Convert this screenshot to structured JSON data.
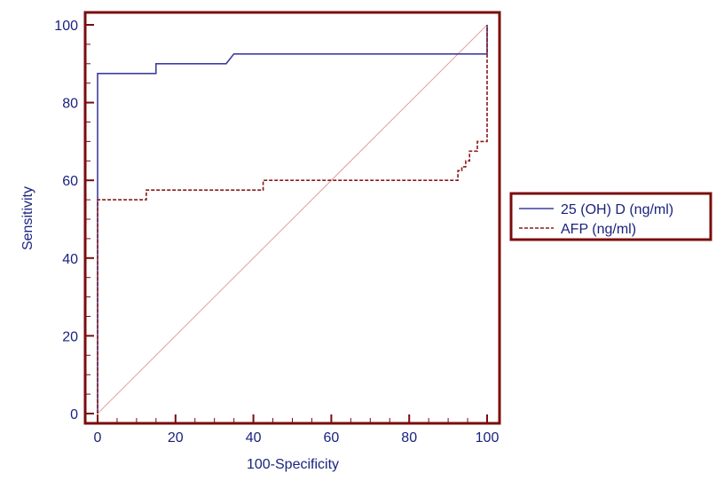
{
  "chart_data": {
    "type": "line",
    "xlabel": "100-Specificity",
    "ylabel": "Sensitivity",
    "xlim": [
      0,
      100
    ],
    "ylim": [
      0,
      100
    ],
    "x_ticks": [
      "0",
      "20",
      "40",
      "60",
      "80",
      "100"
    ],
    "y_ticks": [
      "0",
      "20",
      "40",
      "60",
      "80",
      "100"
    ],
    "grid": false,
    "legend_position": "right",
    "frame_color": "#7b0c0c",
    "tick_label_color": "#1a237e",
    "diagonal_color": "#e0a0a0",
    "series": [
      {
        "name": "25 (OH) D (ng/ml)",
        "style": "solid",
        "color": "#3f3f9f",
        "x": [
          0,
          0,
          15,
          15,
          33,
          35,
          100,
          100
        ],
        "y": [
          0,
          87.5,
          87.5,
          90,
          90,
          92.5,
          92.5,
          100
        ]
      },
      {
        "name": "AFP (ng/ml)",
        "style": "dashed",
        "color": "#8b1a1a",
        "x": [
          0,
          0,
          12.5,
          12.5,
          42.5,
          42.5,
          92.5,
          92.5,
          93.5,
          93.5,
          94.5,
          94.5,
          95.5,
          95.5,
          97.5,
          97.5,
          100,
          100
        ],
        "y": [
          0,
          55,
          55,
          57.5,
          57.5,
          60,
          60,
          62.5,
          62.5,
          63.5,
          63.5,
          65,
          65,
          67.5,
          67.5,
          70,
          70,
          100
        ]
      }
    ]
  }
}
